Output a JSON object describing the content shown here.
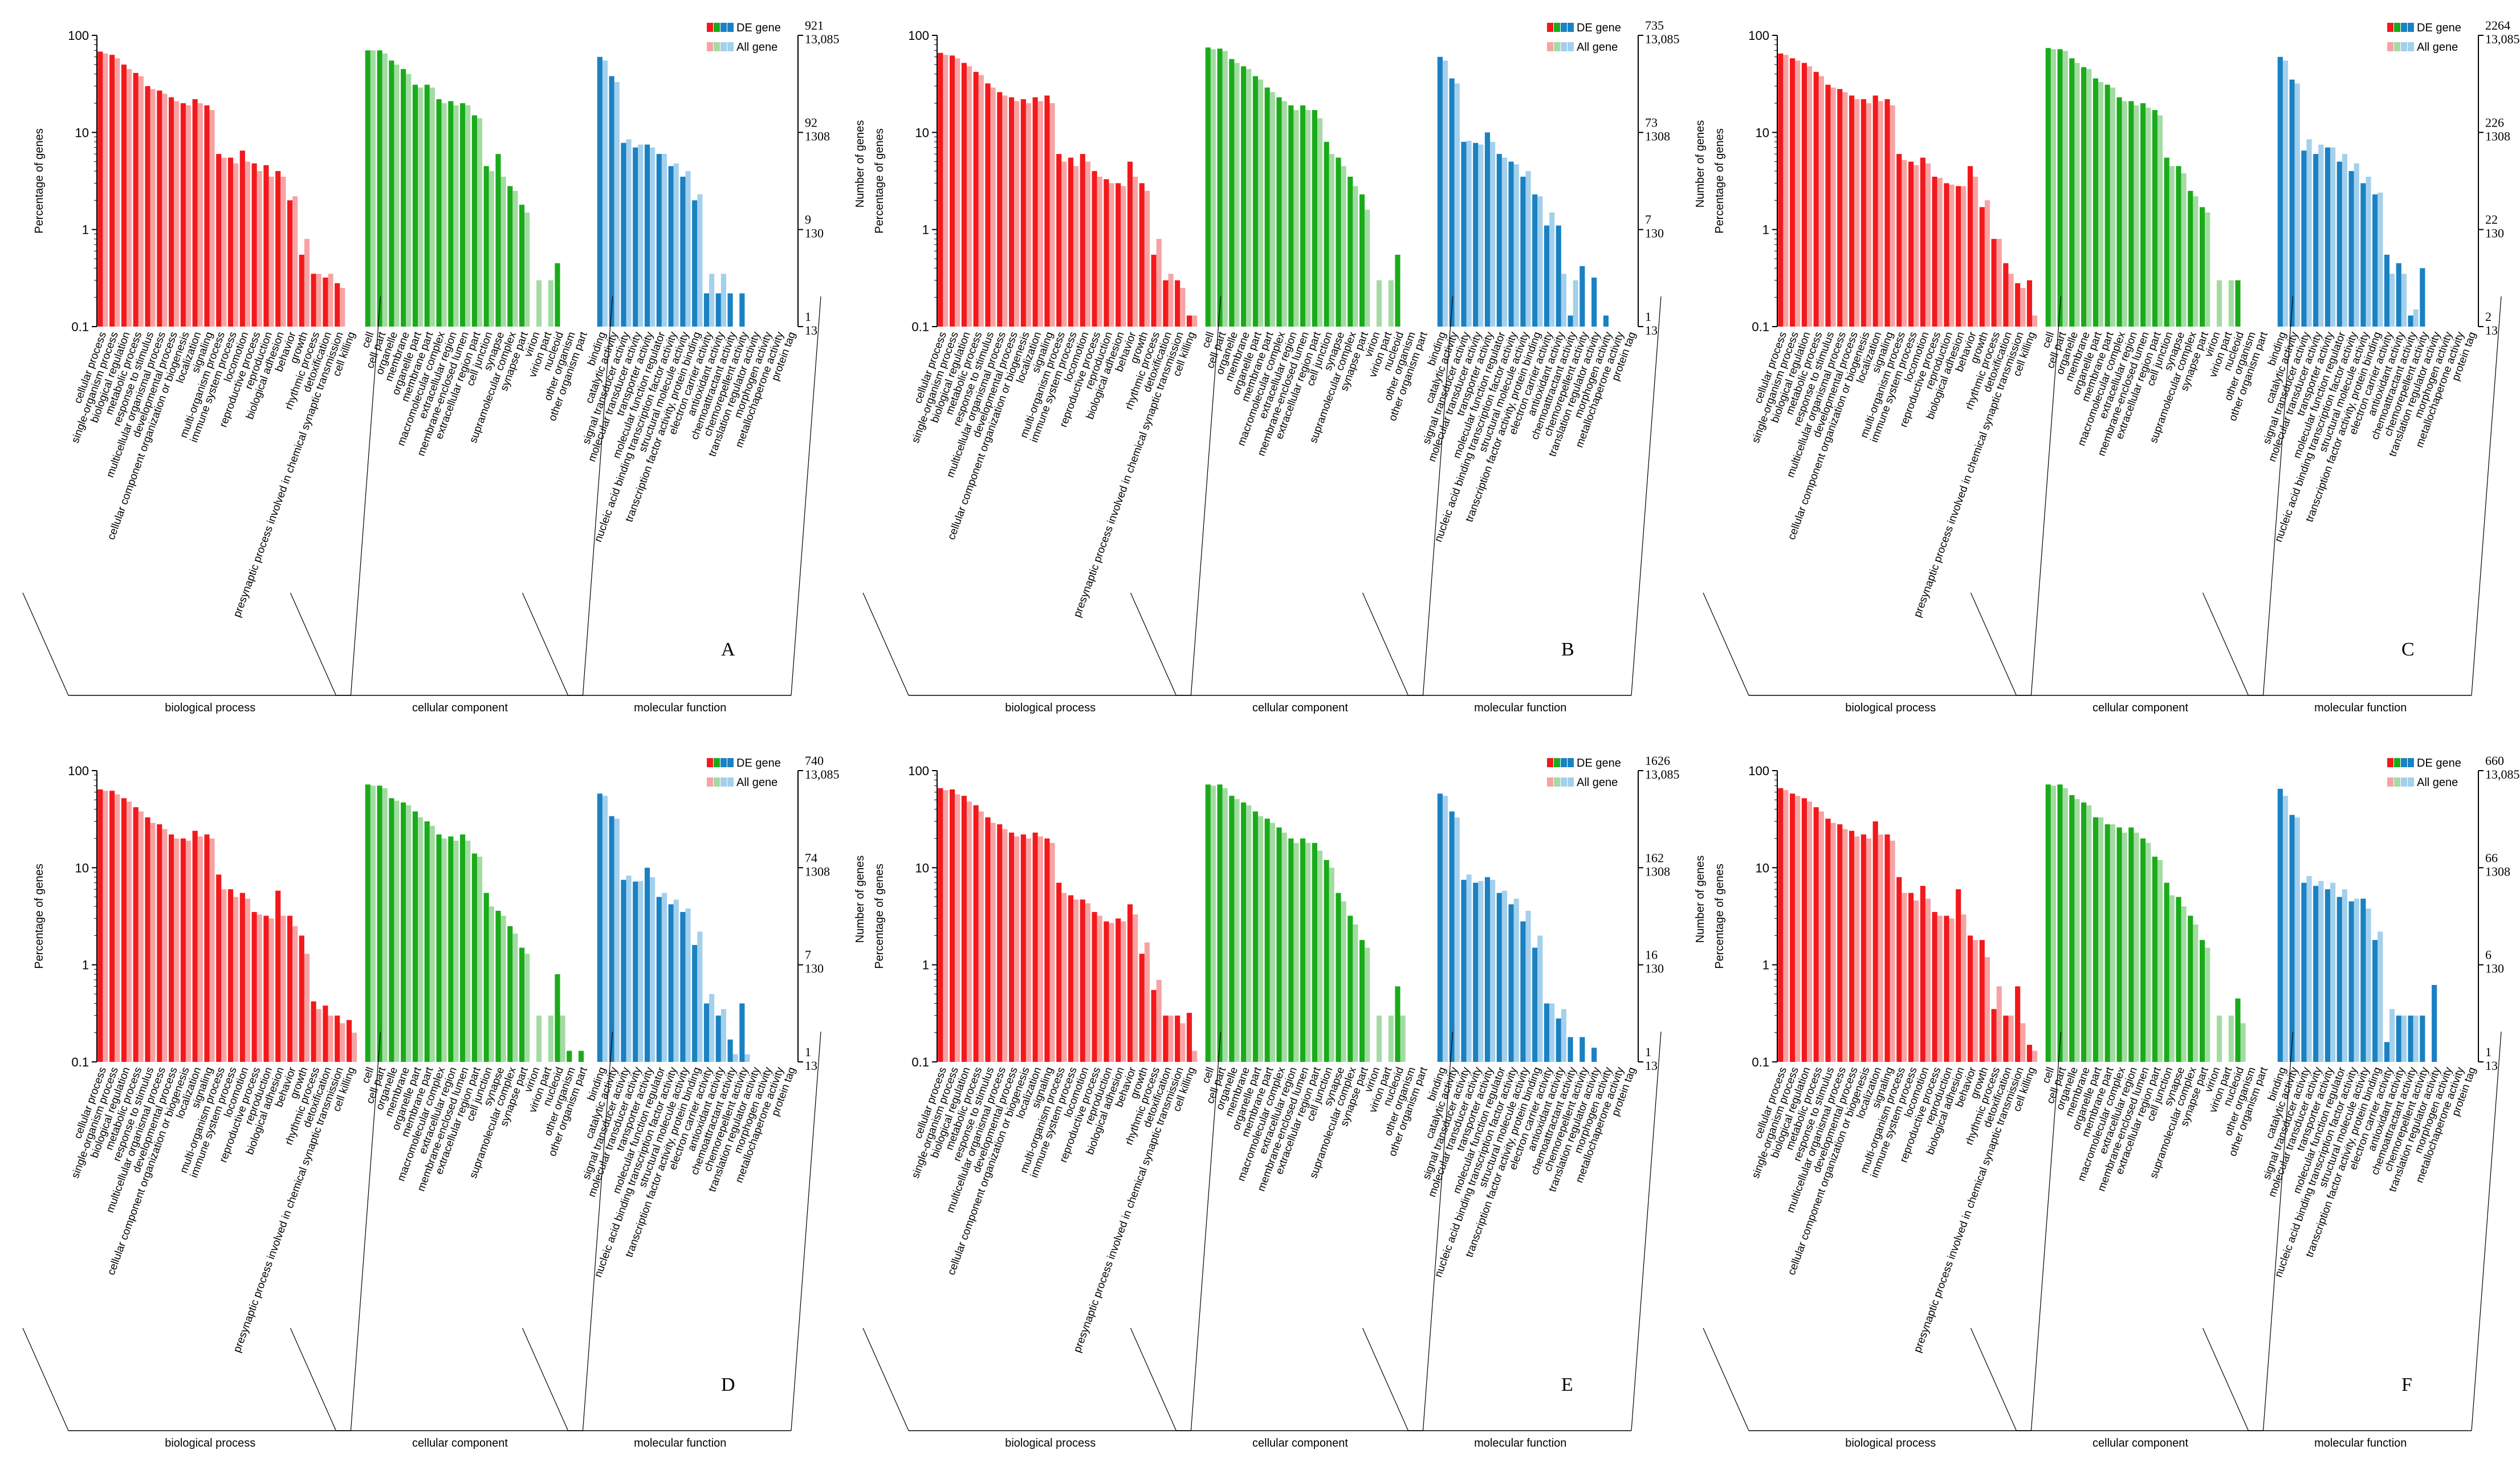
{
  "colors": {
    "de": {
      "bp": "#f2191c",
      "cc": "#1aab1a",
      "mf": "#1a81c2"
    },
    "all": {
      "bp": "#f7a3a3",
      "cc": "#a3dba3",
      "mf": "#a3d0ec"
    }
  },
  "legend": {
    "de": "DE gene",
    "all": "All gene"
  },
  "axes": {
    "ylabel": "Percentage of genes",
    "y2label": "Number of genes",
    "yticks": [
      "100",
      "10",
      "1",
      "0.1"
    ]
  },
  "groups": {
    "bp": "biological process",
    "cc": "cellular component",
    "mf": "molecular function"
  },
  "categories": {
    "bp": [
      "cellular process",
      "single-organism process",
      "biological regulation",
      "metabolic process",
      "response to stimulus",
      "multicellular organismal process",
      "developmental process",
      "cellular component organization or biogenesis",
      "localization",
      "signaling",
      "multi-organism process",
      "immune system process",
      "locomotion",
      "reproductive process",
      "reproduction",
      "biological adhesion",
      "behavior",
      "growth",
      "rhythmic process",
      "detoxification",
      "presynaptic process involved in chemical synaptic transmission",
      "cell killing"
    ],
    "cc": [
      "cell",
      "cell part",
      "organelle",
      "membrane",
      "organelle part",
      "membrane part",
      "macromolecular complex",
      "extracellular region",
      "membrane-enclosed lumen",
      "extracellular region part",
      "cell junction",
      "synapse",
      "supramolecular complex",
      "synapse part",
      "virion",
      "virion part",
      "nucleoid",
      "other organism",
      "other organism part"
    ],
    "mf": [
      "binding",
      "catalytic activity",
      "signal transducer activity",
      "molecular transducer activity",
      "transporter activity",
      "molecular function regulator",
      "nucleic acid binding transcription factor activity",
      "structural molecule activity",
      "transcription factor activity, protein binding",
      "electron carrier activity",
      "antioxidant activity",
      "chemoattractant activity",
      "chemorepellent activity",
      "translation regulator activity",
      "morphogen activity",
      "metallochaperone activity",
      "protein tag"
    ]
  },
  "chart_data": [
    {
      "type": "bar",
      "panel": "A",
      "ylim": [
        0.1,
        100
      ],
      "de_total": "921",
      "all_total": "13,085",
      "right_ticks": [
        [
          "921",
          "13,085"
        ],
        [
          "92",
          "1308"
        ],
        [
          "9",
          "130"
        ],
        [
          "1",
          "13"
        ]
      ],
      "series": [
        {
          "name": "DE gene",
          "bp": [
            68,
            63,
            50,
            41,
            30,
            27,
            23,
            20,
            22,
            19,
            6,
            5.5,
            6.5,
            4.8,
            4.6,
            4,
            2,
            0.55,
            0.35,
            0.32,
            0.28,
            0.1
          ],
          "cc": [
            70,
            70,
            55,
            45,
            31,
            31,
            22,
            21,
            20,
            15,
            4.5,
            6,
            2.8,
            1.8,
            0.1,
            0.1,
            0.45,
            0.1,
            0.1
          ],
          "mf": [
            60,
            38,
            7.8,
            7,
            7.5,
            6,
            4.5,
            3.5,
            2,
            0.22,
            0.22,
            0.22,
            0.22,
            0.1,
            0.1,
            0.1,
            0.1
          ]
        },
        {
          "name": "All gene",
          "bp": [
            65,
            58,
            45,
            38,
            28,
            25,
            21,
            19,
            20,
            17,
            5.5,
            4.8,
            5,
            4,
            3.5,
            3.5,
            2.2,
            0.8,
            0.35,
            0.35,
            0.25,
            0.1
          ],
          "cc": [
            70,
            65,
            50,
            40,
            29,
            29,
            20,
            19,
            19,
            14,
            4,
            3.5,
            2.5,
            1.5,
            0.3,
            0.3,
            0.1,
            0.1,
            0.1
          ],
          "mf": [
            55,
            33,
            8.5,
            7.5,
            7,
            6,
            4.8,
            4,
            2.3,
            0.35,
            0.35,
            0.1,
            0.1,
            0.1,
            0.1,
            0.1,
            0.1
          ]
        }
      ]
    },
    {
      "type": "bar",
      "panel": "B",
      "ylim": [
        0.1,
        100
      ],
      "de_total": "735",
      "all_total": "13,085",
      "right_ticks": [
        [
          "735",
          "13,085"
        ],
        [
          "73",
          "1308"
        ],
        [
          "7",
          "130"
        ],
        [
          "1",
          "13"
        ]
      ],
      "series": [
        {
          "name": "DE gene",
          "bp": [
            66,
            62,
            52,
            42,
            32,
            26,
            23,
            22,
            23,
            24,
            6,
            5.5,
            6,
            4,
            3.3,
            3,
            5,
            3,
            0.55,
            0.3,
            0.3,
            0.13
          ],
          "cc": [
            75,
            73,
            57,
            48,
            38,
            29,
            23,
            19,
            19,
            17,
            8,
            5.5,
            3.5,
            2.3,
            0.1,
            0.1,
            0.55,
            0.1,
            0.1
          ],
          "mf": [
            60,
            36,
            8,
            7.8,
            10,
            6,
            5,
            3.5,
            2.3,
            1.1,
            1.1,
            0.13,
            0.42,
            0.32,
            0.13,
            0.1,
            0.1
          ]
        },
        {
          "name": "All gene",
          "bp": [
            63,
            58,
            48,
            39,
            29,
            24,
            21,
            20,
            21,
            20,
            5,
            4.5,
            5,
            3.5,
            3,
            2.8,
            3.5,
            2.5,
            0.8,
            0.35,
            0.25,
            0.13
          ],
          "cc": [
            72,
            69,
            52,
            45,
            35,
            26,
            21,
            17,
            17,
            14,
            6,
            4.5,
            2.8,
            1.6,
            0.3,
            0.3,
            0.1,
            0.1,
            0.1
          ],
          "mf": [
            55,
            32,
            8.2,
            7.5,
            8,
            5.5,
            4.7,
            4,
            2.2,
            1.5,
            0.35,
            0.3,
            0.1,
            0.1,
            0.1,
            0.1,
            0.1
          ]
        }
      ]
    },
    {
      "type": "bar",
      "panel": "C",
      "ylim": [
        0.1,
        100
      ],
      "de_total": "2264",
      "all_total": "13,085",
      "right_ticks": [
        [
          "2264",
          "13,085"
        ],
        [
          "226",
          "1308"
        ],
        [
          "22",
          "130"
        ],
        [
          "2",
          "13"
        ]
      ],
      "series": [
        {
          "name": "DE gene",
          "bp": [
            65,
            58,
            52,
            42,
            31,
            28,
            24,
            22,
            24,
            22,
            6,
            5,
            5.5,
            3.5,
            3,
            2.8,
            4.5,
            1.7,
            0.8,
            0.45,
            0.28,
            0.3
          ],
          "cc": [
            74,
            72,
            58,
            47,
            36,
            31,
            23,
            21,
            20,
            17,
            5.5,
            4.5,
            2.5,
            1.7,
            0.1,
            0.1,
            0.3,
            0.1,
            0.1
          ],
          "mf": [
            60,
            35,
            6.5,
            6,
            7,
            5,
            4,
            3,
            2.3,
            0.55,
            0.45,
            0.13,
            0.4,
            0.1,
            0.1,
            0.1,
            0.1
          ]
        },
        {
          "name": "All gene",
          "bp": [
            63,
            55,
            48,
            38,
            29,
            26,
            22,
            20,
            21,
            19,
            5.2,
            4.6,
            4.8,
            3.4,
            2.9,
            2.8,
            3.5,
            2,
            0.8,
            0.35,
            0.25,
            0.13
          ],
          "cc": [
            72,
            69,
            52,
            45,
            33,
            29,
            21,
            19,
            18,
            15,
            4.5,
            3.8,
            2.2,
            1.5,
            0.3,
            0.3,
            0.1,
            0.1,
            0.1
          ],
          "mf": [
            55,
            32,
            8.5,
            7.5,
            7,
            6,
            4.8,
            3.5,
            2.4,
            0.35,
            0.35,
            0.15,
            0.1,
            0.1,
            0.1,
            0.1,
            0.1
          ]
        }
      ]
    },
    {
      "type": "bar",
      "panel": "D",
      "ylim": [
        0.1,
        100
      ],
      "de_total": "740",
      "all_total": "13,085",
      "right_ticks": [
        [
          "740",
          "13,085"
        ],
        [
          "74",
          "1308"
        ],
        [
          "7",
          "130"
        ],
        [
          "1",
          "13"
        ]
      ],
      "series": [
        {
          "name": "DE gene",
          "bp": [
            64,
            62,
            52,
            42,
            33,
            28,
            22,
            20,
            24,
            22,
            8.5,
            6,
            5.5,
            3.5,
            3.2,
            5.8,
            3.2,
            2,
            0.42,
            0.38,
            0.3,
            0.27
          ],
          "cc": [
            72,
            70,
            52,
            47,
            38,
            30,
            22,
            21,
            22,
            14,
            5.5,
            3.6,
            2.5,
            1.5,
            0.1,
            0.1,
            0.8,
            0.13,
            0.13
          ],
          "mf": [
            58,
            34,
            7.5,
            7.2,
            10,
            5,
            4.2,
            3.5,
            1.6,
            0.4,
            0.3,
            0.17,
            0.4,
            0.1,
            0.1,
            0.1,
            0.1
          ]
        },
        {
          "name": "All gene",
          "bp": [
            62,
            57,
            48,
            38,
            29,
            25,
            20,
            19,
            21,
            20,
            6,
            5,
            4.8,
            3.3,
            3,
            3.2,
            2.5,
            1.3,
            0.35,
            0.3,
            0.25,
            0.2
          ],
          "cc": [
            70,
            66,
            49,
            44,
            33,
            27,
            20,
            19,
            19,
            13,
            4,
            3.2,
            2.1,
            1.3,
            0.3,
            0.3,
            0.3,
            0.1,
            0.1
          ],
          "mf": [
            55,
            32,
            8.3,
            7.3,
            8,
            5.5,
            4.7,
            3.8,
            2.2,
            0.5,
            0.35,
            0.12,
            0.12,
            0.1,
            0.1,
            0.1,
            0.1
          ]
        }
      ]
    },
    {
      "type": "bar",
      "panel": "E",
      "ylim": [
        0.1,
        100
      ],
      "de_total": "1626",
      "all_total": "13,085",
      "right_ticks": [
        [
          "1626",
          "13,085"
        ],
        [
          "162",
          "1308"
        ],
        [
          "16",
          "130"
        ],
        [
          "1",
          "13"
        ]
      ],
      "series": [
        {
          "name": "DE gene",
          "bp": [
            66,
            64,
            55,
            44,
            33,
            28,
            23,
            22,
            23,
            20,
            7,
            5.2,
            4.7,
            3.5,
            2.8,
            3,
            4.2,
            1.3,
            0.55,
            0.3,
            0.3,
            0.32
          ],
          "cc": [
            72,
            72,
            55,
            47,
            38,
            32,
            26,
            20,
            20,
            18,
            12,
            5.5,
            3.2,
            1.8,
            0.1,
            0.1,
            0.6,
            0.1,
            0.1
          ],
          "mf": [
            58,
            38,
            7.5,
            7,
            8,
            5.5,
            4.2,
            2.8,
            1.5,
            0.4,
            0.28,
            0.18,
            0.18,
            0.14,
            0.1,
            0.1,
            0.1
          ]
        },
        {
          "name": "All gene",
          "bp": [
            63,
            57,
            48,
            38,
            29,
            25,
            21,
            20,
            21,
            18,
            5.5,
            4.7,
            4.3,
            3.2,
            2.7,
            2.8,
            3.3,
            1.7,
            0.7,
            0.3,
            0.25,
            0.13
          ],
          "cc": [
            70,
            66,
            51,
            44,
            34,
            29,
            23,
            18,
            18,
            15,
            10,
            4.5,
            2.6,
            1.5,
            0.3,
            0.3,
            0.3,
            0.1,
            0.1
          ],
          "mf": [
            55,
            33,
            8.5,
            7.3,
            7.5,
            5.8,
            4.8,
            3.6,
            2,
            0.4,
            0.35,
            0.1,
            0.1,
            0.1,
            0.1,
            0.1,
            0.1
          ]
        }
      ]
    },
    {
      "type": "bar",
      "panel": "F",
      "ylim": [
        0.1,
        100
      ],
      "de_total": "660",
      "all_total": "13,085",
      "right_ticks": [
        [
          "660",
          "13,085"
        ],
        [
          "66",
          "1308"
        ],
        [
          "6",
          "130"
        ],
        [
          "1",
          "13"
        ]
      ],
      "series": [
        {
          "name": "DE gene",
          "bp": [
            66,
            58,
            52,
            42,
            32,
            28,
            24,
            22,
            30,
            22,
            8,
            5.5,
            6.5,
            3.5,
            3.2,
            6,
            2,
            1.8,
            0.35,
            0.3,
            0.6,
            0.15
          ],
          "cc": [
            72,
            72,
            56,
            47,
            33,
            28,
            26,
            26,
            20,
            13,
            7,
            5,
            3.2,
            1.8,
            0.1,
            0.1,
            0.45,
            0.1,
            0.1
          ],
          "mf": [
            65,
            35,
            7,
            6.5,
            6,
            5,
            4.5,
            4.8,
            1.8,
            0.16,
            0.3,
            0.3,
            0.3,
            0.62,
            0.1,
            0.1,
            0.1
          ]
        },
        {
          "name": "All gene",
          "bp": [
            63,
            55,
            48,
            38,
            29,
            25,
            21,
            20,
            22,
            19,
            5.5,
            4.6,
            4.8,
            3.2,
            3,
            3.3,
            1.8,
            1.2,
            0.6,
            0.3,
            0.25,
            0.13
          ],
          "cc": [
            70,
            66,
            51,
            44,
            33,
            28,
            23,
            23,
            18,
            12,
            5.2,
            4,
            2.6,
            1.5,
            0.3,
            0.3,
            0.25,
            0.1,
            0.1
          ],
          "mf": [
            55,
            33,
            8.2,
            7.3,
            7,
            6,
            4.8,
            3.8,
            2.2,
            0.35,
            0.3,
            0.3,
            0.1,
            0.1,
            0.1,
            0.1,
            0.1
          ]
        }
      ]
    }
  ]
}
